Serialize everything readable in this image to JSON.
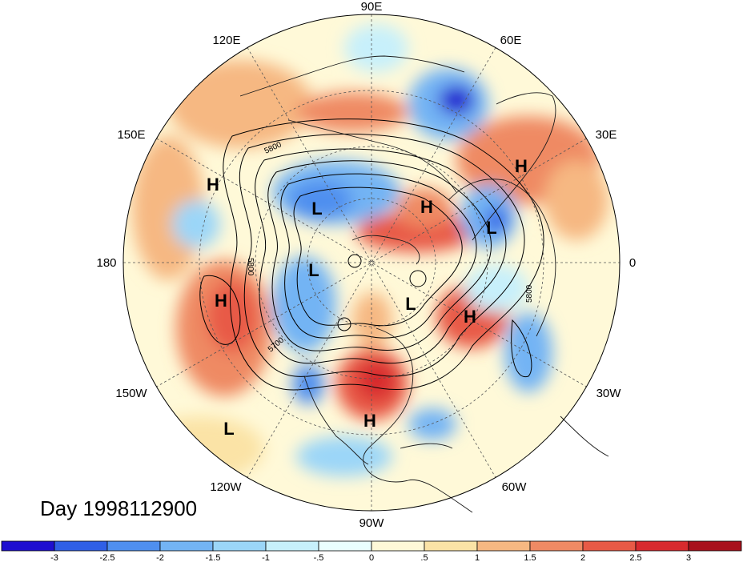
{
  "title": "Day 1998112900",
  "longitude_labels": [
    "90E",
    "60E",
    "30E",
    "0",
    "30W",
    "60W",
    "90W",
    "120W",
    "150W",
    "180",
    "150E",
    "120E"
  ],
  "systems": [
    {
      "type": "H",
      "label": "H"
    },
    {
      "type": "H",
      "label": "H"
    },
    {
      "type": "H",
      "label": "H"
    },
    {
      "type": "H",
      "label": "H"
    },
    {
      "type": "H",
      "label": "H"
    },
    {
      "type": "H",
      "label": "H"
    },
    {
      "type": "L",
      "label": "L"
    },
    {
      "type": "L",
      "label": "L"
    },
    {
      "type": "L",
      "label": "L"
    },
    {
      "type": "L",
      "label": "L"
    },
    {
      "type": "L",
      "label": "L"
    }
  ],
  "contour_labels": [
    "5800",
    "5800",
    "5800",
    "5700"
  ],
  "colorbar": {
    "ticks": [
      "-3",
      "-2.5",
      "-2",
      "-1.5",
      "-1",
      "-.5",
      "0",
      ".5",
      "1",
      "1.5",
      "2",
      "2.5",
      "3"
    ],
    "colors": [
      "#1e0fd0",
      "#2f5fe6",
      "#4f8fef",
      "#73b4f4",
      "#9bd6f8",
      "#c7f0fb",
      "#eaffff",
      "#fff9d8",
      "#fbe3a6",
      "#f6b882",
      "#ef8a64",
      "#e85a46",
      "#d82a2e",
      "#a8101c"
    ]
  }
}
